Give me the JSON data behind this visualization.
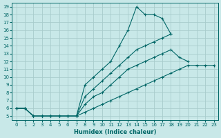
{
  "xlabel": "Humidex (Indice chaleur)",
  "xlim": [
    -0.5,
    23.5
  ],
  "ylim": [
    4.5,
    19.5
  ],
  "xticks": [
    0,
    1,
    2,
    3,
    4,
    5,
    6,
    7,
    8,
    9,
    10,
    11,
    12,
    13,
    14,
    15,
    16,
    17,
    18,
    19,
    20,
    21,
    22,
    23
  ],
  "yticks": [
    5,
    6,
    7,
    8,
    9,
    10,
    11,
    12,
    13,
    14,
    15,
    16,
    17,
    18,
    19
  ],
  "bg_color": "#c8e8e8",
  "grid_color": "#a8cccc",
  "line_color": "#006666",
  "lines": [
    {
      "x": [
        0,
        1,
        2,
        3,
        4,
        5,
        6,
        7,
        8,
        9,
        10,
        11,
        12,
        13,
        14,
        15,
        16,
        17,
        18
      ],
      "y": [
        6,
        6,
        5,
        5,
        5,
        5,
        5,
        5,
        9,
        10,
        11,
        12,
        14,
        16,
        19,
        18,
        18,
        17.5,
        15.5
      ]
    },
    {
      "x": [
        0,
        1,
        2,
        3,
        4,
        5,
        6,
        7,
        8,
        9,
        10,
        11,
        12,
        13,
        14,
        15,
        16,
        17,
        18,
        19,
        20,
        21,
        22
      ],
      "y": [
        6,
        6,
        5,
        5,
        5,
        5,
        5,
        5,
        7.5,
        8.5,
        9.5,
        10.5,
        11.5,
        12.5,
        13.5,
        14,
        14.5,
        15,
        15.5,
        null,
        null,
        null,
        null
      ]
    },
    {
      "x": [
        0,
        1,
        2,
        3,
        4,
        5,
        6,
        7,
        8,
        9,
        10,
        11,
        12,
        13,
        14,
        15,
        16,
        17,
        18,
        19,
        20
      ],
      "y": [
        6,
        6,
        5,
        5,
        5,
        5,
        5,
        5,
        6.5,
        7.5,
        8,
        9,
        10,
        11,
        11.5,
        12,
        12.5,
        13,
        13.5,
        12.5,
        12
      ]
    },
    {
      "x": [
        0,
        1,
        2,
        3,
        4,
        5,
        6,
        7,
        8,
        9,
        10,
        11,
        12,
        13,
        14,
        15,
        16,
        17,
        18,
        19,
        20,
        21,
        22,
        23
      ],
      "y": [
        6,
        6,
        5,
        5,
        5,
        5,
        5,
        5,
        5.5,
        6,
        6.5,
        7,
        7.5,
        8,
        8.5,
        9,
        9.5,
        10,
        10.5,
        11,
        11.5,
        11.5,
        11.5,
        11.5
      ]
    }
  ]
}
